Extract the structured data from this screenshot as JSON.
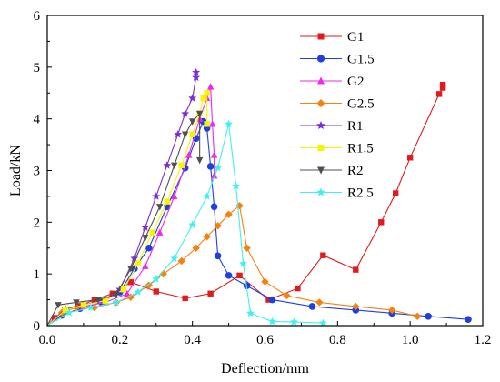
{
  "chart_data": {
    "type": "line",
    "title": "",
    "xlabel": "Deflection/mm",
    "ylabel": "Load/kN",
    "xlim": [
      0,
      1.2
    ],
    "ylim": [
      0,
      6
    ],
    "xticks": [
      "0.0",
      "0.2",
      "0.4",
      "0.6",
      "0.8",
      "1.0",
      "1.2"
    ],
    "yticks": [
      "0",
      "1",
      "2",
      "3",
      "4",
      "5",
      "6"
    ],
    "grid": false,
    "legend_position": "top-right",
    "series": [
      {
        "name": "G1",
        "color": "#e31a1c",
        "marker": "square",
        "points": [
          [
            0.0,
            0.0
          ],
          [
            0.02,
            0.15
          ],
          [
            0.05,
            0.3
          ],
          [
            0.09,
            0.38
          ],
          [
            0.13,
            0.5
          ],
          [
            0.18,
            0.62
          ],
          [
            0.23,
            0.84
          ],
          [
            0.3,
            0.66
          ],
          [
            0.38,
            0.53
          ],
          [
            0.45,
            0.62
          ],
          [
            0.53,
            0.97
          ],
          [
            0.61,
            0.5
          ],
          [
            0.69,
            0.72
          ],
          [
            0.76,
            1.36
          ],
          [
            0.85,
            1.08
          ],
          [
            0.92,
            2.0
          ],
          [
            0.96,
            2.56
          ],
          [
            1.0,
            3.25
          ],
          [
            1.08,
            4.48
          ],
          [
            1.09,
            4.6
          ],
          [
            1.09,
            4.66
          ]
        ]
      },
      {
        "name": "G1.5",
        "color": "#1f3fe0",
        "marker": "circle",
        "points": [
          [
            0.0,
            0.0
          ],
          [
            0.04,
            0.2
          ],
          [
            0.09,
            0.33
          ],
          [
            0.15,
            0.45
          ],
          [
            0.2,
            0.65
          ],
          [
            0.24,
            1.1
          ],
          [
            0.28,
            1.5
          ],
          [
            0.33,
            2.3
          ],
          [
            0.38,
            3.05
          ],
          [
            0.41,
            3.62
          ],
          [
            0.43,
            3.95
          ],
          [
            0.44,
            3.82
          ],
          [
            0.45,
            3.08
          ],
          [
            0.46,
            2.3
          ],
          [
            0.47,
            1.35
          ],
          [
            0.5,
            0.97
          ],
          [
            0.55,
            0.77
          ],
          [
            0.62,
            0.5
          ],
          [
            0.73,
            0.37
          ],
          [
            0.85,
            0.3
          ],
          [
            0.95,
            0.24
          ],
          [
            1.05,
            0.18
          ],
          [
            1.16,
            0.12
          ]
        ]
      },
      {
        "name": "G2",
        "color": "#ee28ee",
        "marker": "triangle-up",
        "points": [
          [
            0.0,
            0.0
          ],
          [
            0.05,
            0.3
          ],
          [
            0.1,
            0.37
          ],
          [
            0.16,
            0.45
          ],
          [
            0.22,
            0.62
          ],
          [
            0.27,
            1.15
          ],
          [
            0.31,
            1.8
          ],
          [
            0.35,
            2.5
          ],
          [
            0.39,
            3.3
          ],
          [
            0.42,
            4.0
          ],
          [
            0.44,
            4.4
          ],
          [
            0.45,
            4.62
          ],
          [
            0.455,
            3.9
          ],
          [
            0.46,
            3.3
          ],
          [
            0.46,
            2.9
          ]
        ]
      },
      {
        "name": "G2.5",
        "color": "#f5820d",
        "marker": "diamond",
        "points": [
          [
            0.0,
            0.0
          ],
          [
            0.04,
            0.25
          ],
          [
            0.08,
            0.35
          ],
          [
            0.13,
            0.35
          ],
          [
            0.19,
            0.45
          ],
          [
            0.23,
            0.55
          ],
          [
            0.28,
            0.78
          ],
          [
            0.32,
            1.0
          ],
          [
            0.37,
            1.25
          ],
          [
            0.41,
            1.5
          ],
          [
            0.44,
            1.72
          ],
          [
            0.47,
            1.93
          ],
          [
            0.5,
            2.15
          ],
          [
            0.53,
            2.32
          ],
          [
            0.55,
            1.5
          ],
          [
            0.6,
            0.85
          ],
          [
            0.66,
            0.58
          ],
          [
            0.75,
            0.45
          ],
          [
            0.85,
            0.37
          ],
          [
            0.95,
            0.3
          ],
          [
            1.02,
            0.18
          ]
        ]
      },
      {
        "name": "R1",
        "color": "#7b2fd0",
        "marker": "star",
        "points": [
          [
            0.0,
            0.0
          ],
          [
            0.05,
            0.32
          ],
          [
            0.1,
            0.4
          ],
          [
            0.16,
            0.5
          ],
          [
            0.2,
            0.7
          ],
          [
            0.24,
            1.3
          ],
          [
            0.27,
            1.9
          ],
          [
            0.3,
            2.5
          ],
          [
            0.33,
            3.1
          ],
          [
            0.36,
            3.7
          ],
          [
            0.38,
            4.1
          ],
          [
            0.4,
            4.4
          ],
          [
            0.41,
            4.8
          ],
          [
            0.41,
            4.9
          ]
        ]
      },
      {
        "name": "R1.5",
        "color": "#f5f500",
        "marker": "square",
        "points": [
          [
            0.0,
            0.0
          ],
          [
            0.05,
            0.3
          ],
          [
            0.1,
            0.4
          ],
          [
            0.16,
            0.48
          ],
          [
            0.21,
            0.7
          ],
          [
            0.25,
            1.2
          ],
          [
            0.29,
            1.8
          ],
          [
            0.33,
            2.4
          ],
          [
            0.37,
            3.1
          ],
          [
            0.4,
            3.7
          ],
          [
            0.42,
            4.1
          ],
          [
            0.43,
            4.4
          ],
          [
            0.44,
            4.5
          ],
          [
            0.44,
            3.9
          ]
        ]
      },
      {
        "name": "R2",
        "color": "#505050",
        "marker": "triangle-down",
        "points": [
          [
            0.0,
            0.0
          ],
          [
            0.03,
            0.4
          ],
          [
            0.08,
            0.45
          ],
          [
            0.14,
            0.5
          ],
          [
            0.19,
            0.6
          ],
          [
            0.23,
            1.1
          ],
          [
            0.27,
            1.7
          ],
          [
            0.31,
            2.3
          ],
          [
            0.35,
            3.1
          ],
          [
            0.38,
            3.7
          ],
          [
            0.4,
            3.95
          ],
          [
            0.42,
            4.1
          ],
          [
            0.42,
            3.2
          ]
        ]
      },
      {
        "name": "R2.5",
        "color": "#40f0f0",
        "marker": "star",
        "points": [
          [
            0.0,
            0.0
          ],
          [
            0.06,
            0.25
          ],
          [
            0.12,
            0.35
          ],
          [
            0.19,
            0.45
          ],
          [
            0.25,
            0.65
          ],
          [
            0.3,
            0.9
          ],
          [
            0.35,
            1.3
          ],
          [
            0.4,
            1.95
          ],
          [
            0.44,
            2.5
          ],
          [
            0.47,
            3.05
          ],
          [
            0.5,
            3.9
          ],
          [
            0.52,
            2.7
          ],
          [
            0.54,
            1.2
          ],
          [
            0.56,
            0.24
          ],
          [
            0.62,
            0.08
          ],
          [
            0.68,
            0.07
          ],
          [
            0.76,
            0.05
          ]
        ]
      }
    ]
  }
}
